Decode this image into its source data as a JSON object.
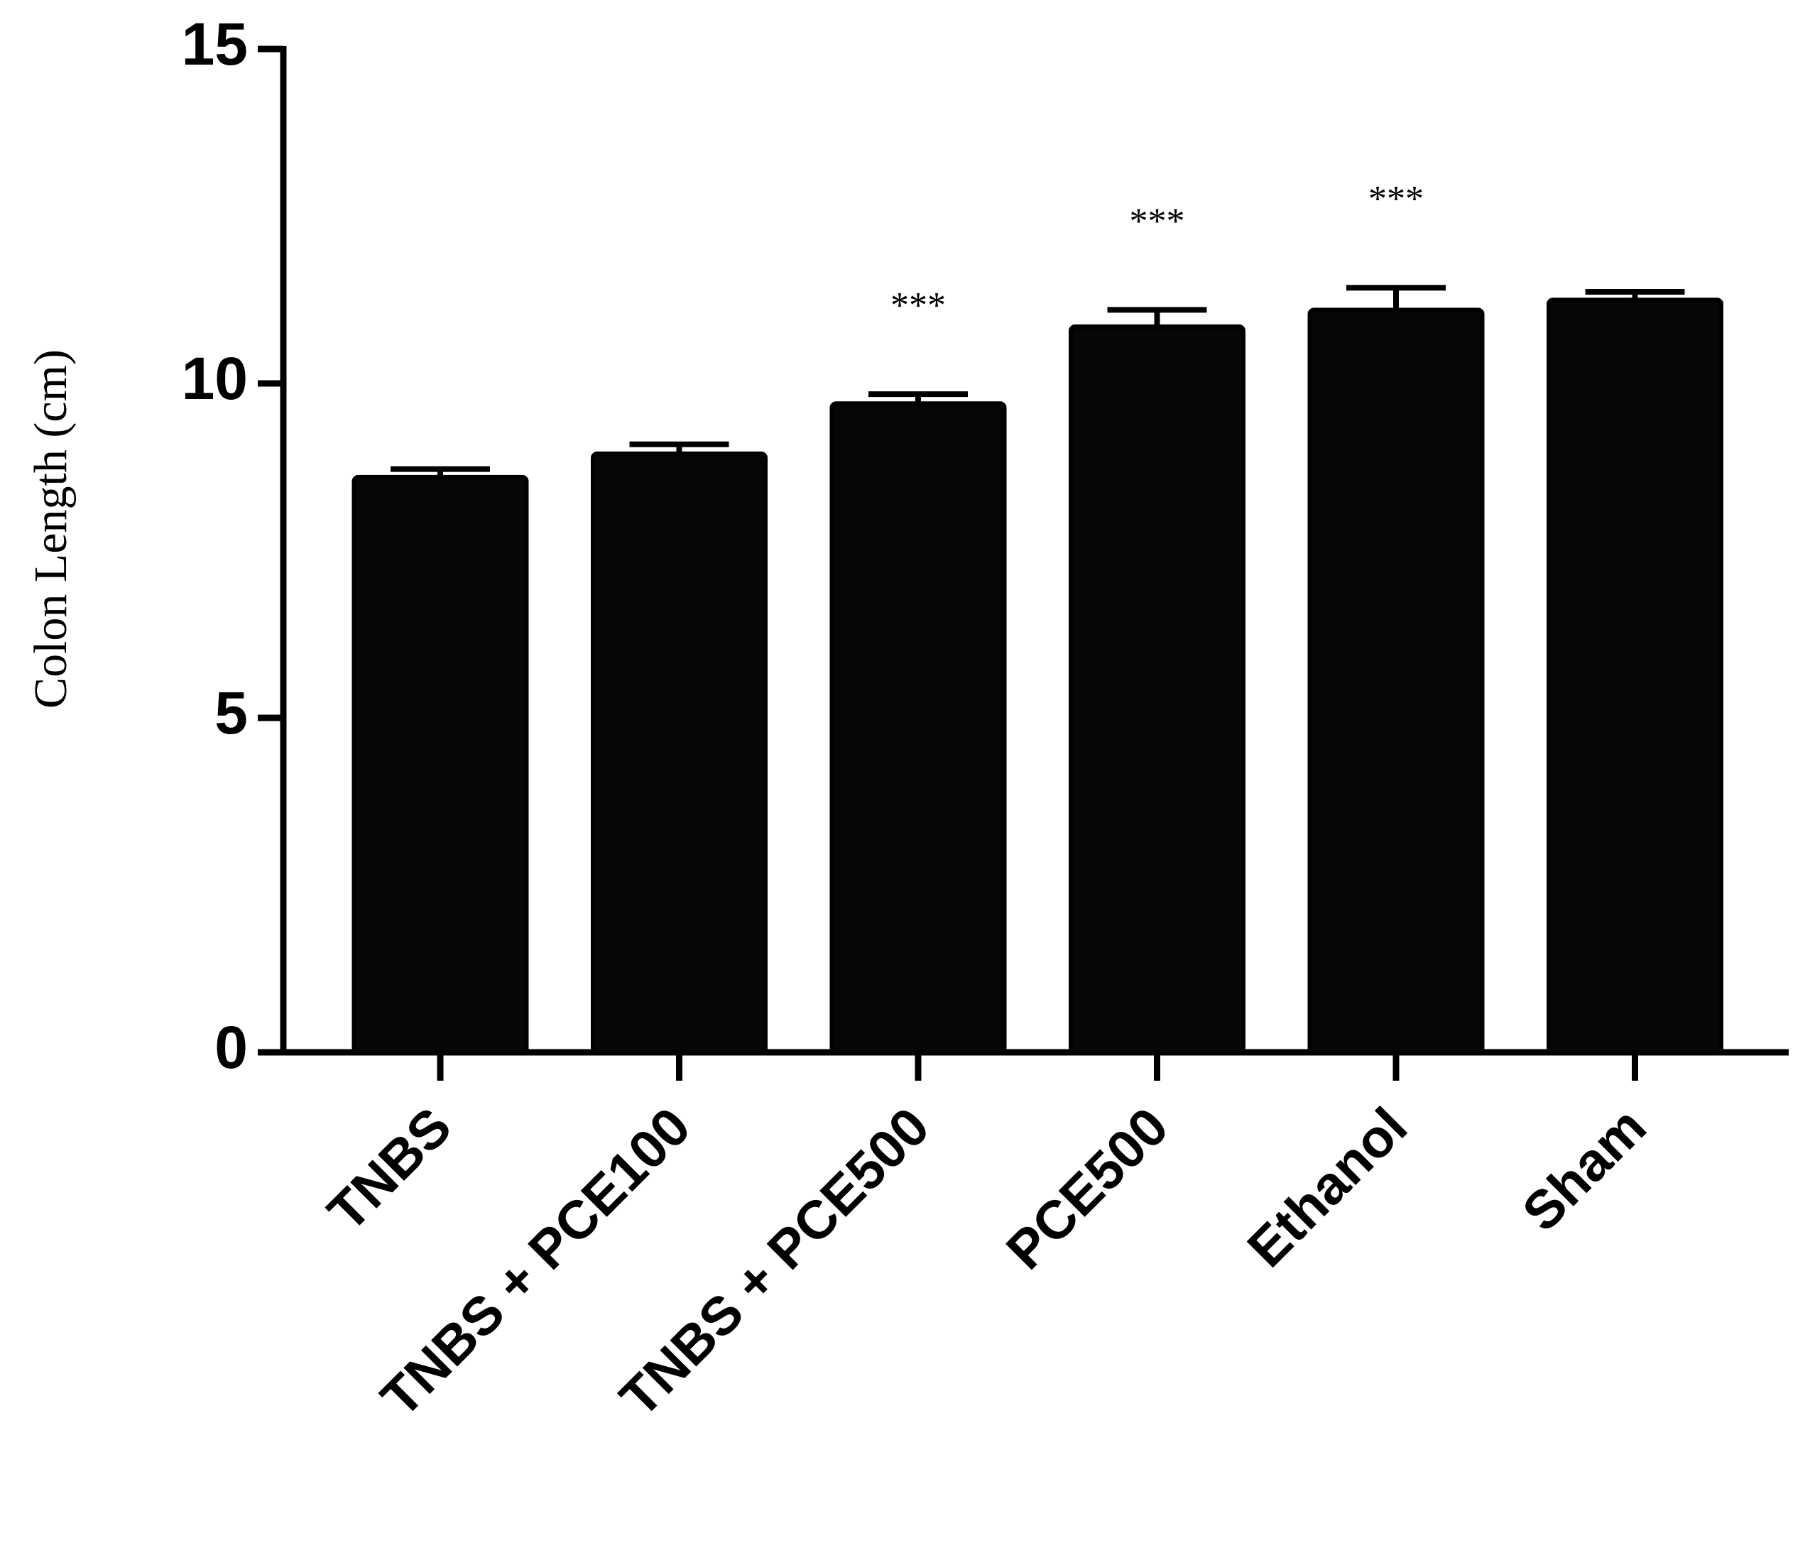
{
  "chart_data": {
    "type": "bar",
    "y_label": "Colon Length (cm)",
    "categories": [
      "TNBS",
      "TNBS + PCE100",
      "TNBS + PCE500",
      "PCE500",
      "Ethanol",
      "Sham"
    ],
    "values": [
      8.6,
      8.95,
      9.7,
      10.85,
      11.1,
      11.25
    ],
    "errors": [
      0.12,
      0.14,
      0.14,
      0.25,
      0.33,
      0.12
    ],
    "annotations": [
      null,
      null,
      "***",
      "***",
      "***",
      null
    ],
    "color": "#060606",
    "ylim": [
      0,
      15
    ],
    "yticks": [
      0,
      5,
      10,
      15
    ],
    "grid": false
  }
}
